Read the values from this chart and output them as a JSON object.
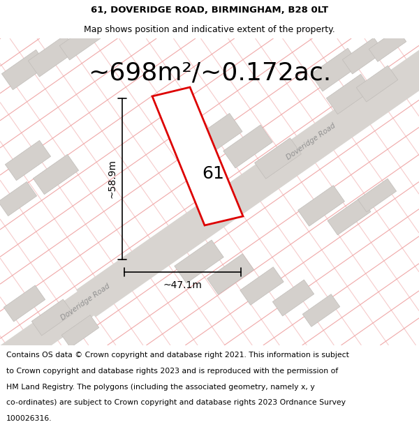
{
  "title_line1": "61, DOVERIDGE ROAD, BIRMINGHAM, B28 0LT",
  "title_line2": "Map shows position and indicative extent of the property.",
  "area_text": "~698m²/~0.172ac.",
  "label_61": "61",
  "dim_width": "~47.1m",
  "dim_height": "~58.9m",
  "road_label_upper": "Doveridge Road",
  "road_label_lower": "Doveridge Road",
  "footer_lines": [
    "Contains OS data © Crown copyright and database right 2021. This information is subject",
    "to Crown copyright and database rights 2023 and is reproduced with the permission of",
    "HM Land Registry. The polygons (including the associated geometry, namely x, y",
    "co-ordinates) are subject to Crown copyright and database rights 2023 Ordnance Survey",
    "100026316."
  ],
  "map_bg": "#f8f7f5",
  "plot_outline_color": "#dd0000",
  "grid_line_color": "#f0a8a8",
  "building_fill_color": "#d4d0cc",
  "building_edge_color": "#c0bcb8",
  "road_fill_color": "#d8d4d0",
  "title_fontsize": 9.5,
  "subtitle_fontsize": 9.0,
  "area_fontsize": 26,
  "dim_fontsize": 10,
  "footer_fontsize": 7.8,
  "label_fontsize": 18
}
